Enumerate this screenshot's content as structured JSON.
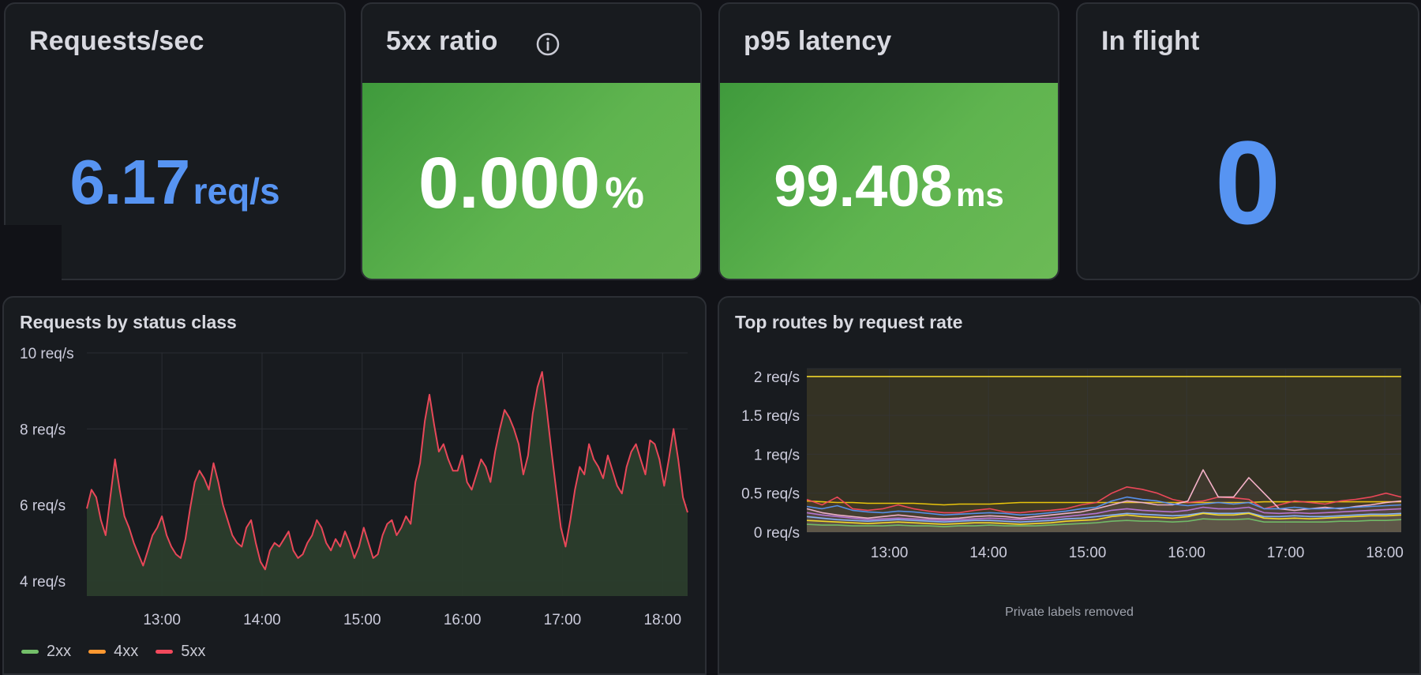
{
  "stats": [
    {
      "title": "Requests/sec",
      "value": "6.17",
      "unit": "req/s",
      "color": "#5794f2"
    },
    {
      "title": "5xx ratio",
      "value": "0.000",
      "unit": "%",
      "color": "#ffffff",
      "background": "#56a64b",
      "info_icon": "info-circle-icon"
    },
    {
      "title": "p95 latency",
      "value": "99.408",
      "unit": "ms",
      "color": "#ffffff",
      "background": "#56a64b"
    },
    {
      "title": "In flight",
      "value": "0",
      "unit": "",
      "color": "#5794f2"
    }
  ],
  "panels": {
    "status": {
      "title": "Requests by status class"
    },
    "routes": {
      "title": "Top routes by request rate",
      "footer": "Private labels removed"
    }
  },
  "chart_data": [
    {
      "type": "line",
      "title": "Requests by status class",
      "ylim": [
        3.6,
        10
      ],
      "yticks": [
        "4 req/s",
        "6 req/s",
        "8 req/s",
        "10 req/s"
      ],
      "ytick_values": [
        4,
        6,
        8,
        10
      ],
      "xticks": [
        "13:00",
        "14:00",
        "15:00",
        "16:00",
        "17:00",
        "18:00"
      ],
      "x_range": [
        "12:15",
        "18:15"
      ],
      "x_tick_minutes_from_start": [
        45,
        105,
        165,
        225,
        285,
        345
      ],
      "x_end_minutes": 360,
      "grid": true,
      "legend_placement": "bottom-left",
      "legend": [
        {
          "name": "2xx",
          "color": "#73bf69"
        },
        {
          "name": "4xx",
          "color": "#ff9830"
        },
        {
          "name": "5xx",
          "color": "#f2495c"
        }
      ],
      "series": [
        {
          "name": "5xx",
          "color": "#f2495c",
          "fill": "#2b3d2c",
          "values": [
            5.9,
            6.4,
            6.2,
            5.6,
            5.2,
            6.2,
            7.2,
            6.4,
            5.7,
            5.4,
            5.0,
            4.7,
            4.4,
            4.8,
            5.2,
            5.4,
            5.7,
            5.2,
            4.9,
            4.7,
            4.6,
            5.1,
            5.9,
            6.6,
            6.9,
            6.7,
            6.4,
            7.1,
            6.6,
            6.0,
            5.6,
            5.2,
            5.0,
            4.9,
            5.4,
            5.6,
            5.0,
            4.5,
            4.3,
            4.8,
            5.0,
            4.9,
            5.1,
            5.3,
            4.8,
            4.6,
            4.7,
            5.0,
            5.2,
            5.6,
            5.4,
            5.0,
            4.8,
            5.1,
            4.9,
            5.3,
            5.0,
            4.6,
            4.9,
            5.4,
            5.0,
            4.6,
            4.7,
            5.2,
            5.5,
            5.6,
            5.2,
            5.4,
            5.7,
            5.5,
            6.6,
            7.1,
            8.2,
            8.9,
            8.1,
            7.4,
            7.6,
            7.2,
            6.9,
            6.9,
            7.3,
            6.6,
            6.4,
            6.8,
            7.2,
            7.0,
            6.6,
            7.4,
            8.0,
            8.5,
            8.3,
            8.0,
            7.6,
            6.8,
            7.3,
            8.4,
            9.1,
            9.5,
            8.5,
            7.4,
            6.4,
            5.4,
            4.9,
            5.6,
            6.4,
            7.0,
            6.8,
            7.6,
            7.2,
            7.0,
            6.7,
            7.3,
            6.9,
            6.5,
            6.3,
            7.0,
            7.4,
            7.6,
            7.2,
            6.8,
            7.7,
            7.6,
            7.2,
            6.5,
            7.2,
            8.0,
            7.2,
            6.2,
            5.8
          ]
        }
      ]
    },
    {
      "type": "line",
      "title": "Top routes by request rate",
      "ylim": [
        0,
        2.1
      ],
      "yticks": [
        "0 req/s",
        "0.5 req/s",
        "1 req/s",
        "1.5 req/s",
        "2 req/s"
      ],
      "ytick_values": [
        0,
        0.5,
        1,
        1.5,
        2
      ],
      "xticks": [
        "13:00",
        "14:00",
        "15:00",
        "16:00",
        "17:00",
        "18:00"
      ],
      "x_range": [
        "12:10",
        "18:10"
      ],
      "x_tick_minutes_from_start": [
        50,
        110,
        170,
        230,
        290,
        350
      ],
      "x_end_minutes": 360,
      "grid": true,
      "series": [
        {
          "color": "#fade2a",
          "values": [
            2.0,
            2.0,
            2.0,
            2.0,
            2.0,
            2.0,
            2.0,
            2.0,
            2.0,
            2.0,
            2.0,
            2.0,
            2.0,
            2.0,
            2.0,
            2.0,
            2.0,
            2.0,
            2.0,
            2.0,
            2.0,
            2.0,
            2.0,
            2.0,
            2.0,
            2.0,
            2.0,
            2.0,
            2.0,
            2.0,
            2.0,
            2.0,
            2.0,
            2.0,
            2.0,
            2.0,
            2.0,
            2.0,
            2.0,
            2.0
          ]
        },
        {
          "color": "#f2cc0c",
          "values": [
            0.4,
            0.39,
            0.38,
            0.38,
            0.37,
            0.37,
            0.37,
            0.37,
            0.36,
            0.35,
            0.36,
            0.36,
            0.36,
            0.37,
            0.38,
            0.38,
            0.38,
            0.38,
            0.38,
            0.38,
            0.38,
            0.38,
            0.38,
            0.38,
            0.38,
            0.38,
            0.38,
            0.38,
            0.38,
            0.38,
            0.39,
            0.39,
            0.39,
            0.39,
            0.39,
            0.39,
            0.39,
            0.39,
            0.39,
            0.39
          ]
        },
        {
          "color": "#f2495c",
          "values": [
            0.42,
            0.35,
            0.45,
            0.3,
            0.28,
            0.3,
            0.35,
            0.3,
            0.27,
            0.25,
            0.25,
            0.28,
            0.3,
            0.26,
            0.25,
            0.27,
            0.28,
            0.3,
            0.35,
            0.38,
            0.5,
            0.58,
            0.55,
            0.5,
            0.42,
            0.38,
            0.4,
            0.45,
            0.44,
            0.42,
            0.3,
            0.35,
            0.4,
            0.38,
            0.36,
            0.4,
            0.42,
            0.45,
            0.5,
            0.45
          ]
        },
        {
          "color": "#ffb8d1",
          "values": [
            0.3,
            0.25,
            0.22,
            0.2,
            0.18,
            0.2,
            0.22,
            0.2,
            0.18,
            0.17,
            0.18,
            0.2,
            0.21,
            0.2,
            0.18,
            0.2,
            0.22,
            0.24,
            0.26,
            0.3,
            0.35,
            0.4,
            0.38,
            0.35,
            0.35,
            0.4,
            0.8,
            0.45,
            0.45,
            0.7,
            0.5,
            0.3,
            0.28,
            0.3,
            0.32,
            0.3,
            0.33,
            0.35,
            0.38,
            0.4
          ]
        },
        {
          "color": "#5794f2",
          "values": [
            0.33,
            0.3,
            0.34,
            0.28,
            0.26,
            0.25,
            0.27,
            0.26,
            0.24,
            0.22,
            0.23,
            0.24,
            0.25,
            0.24,
            0.22,
            0.23,
            0.25,
            0.27,
            0.3,
            0.32,
            0.4,
            0.45,
            0.42,
            0.4,
            0.36,
            0.34,
            0.36,
            0.38,
            0.36,
            0.38,
            0.3,
            0.3,
            0.32,
            0.3,
            0.3,
            0.31,
            0.32,
            0.33,
            0.34,
            0.35
          ]
        },
        {
          "color": "#b877d9",
          "values": [
            0.25,
            0.22,
            0.2,
            0.18,
            0.16,
            0.17,
            0.18,
            0.17,
            0.16,
            0.15,
            0.16,
            0.17,
            0.18,
            0.17,
            0.16,
            0.17,
            0.18,
            0.2,
            0.22,
            0.24,
            0.28,
            0.3,
            0.28,
            0.27,
            0.26,
            0.28,
            0.32,
            0.3,
            0.3,
            0.32,
            0.25,
            0.24,
            0.25,
            0.24,
            0.25,
            0.26,
            0.27,
            0.28,
            0.29,
            0.3
          ]
        },
        {
          "color": "#8ab8ff",
          "values": [
            0.2,
            0.18,
            0.16,
            0.15,
            0.14,
            0.15,
            0.16,
            0.15,
            0.14,
            0.13,
            0.14,
            0.15,
            0.15,
            0.14,
            0.13,
            0.14,
            0.15,
            0.17,
            0.18,
            0.2,
            0.22,
            0.24,
            0.23,
            0.22,
            0.21,
            0.22,
            0.25,
            0.24,
            0.24,
            0.25,
            0.2,
            0.2,
            0.21,
            0.2,
            0.2,
            0.21,
            0.22,
            0.23,
            0.23,
            0.24
          ]
        },
        {
          "color": "#fade2a",
          "values": [
            0.15,
            0.14,
            0.13,
            0.12,
            0.11,
            0.12,
            0.13,
            0.12,
            0.11,
            0.1,
            0.11,
            0.12,
            0.12,
            0.11,
            0.1,
            0.11,
            0.12,
            0.14,
            0.15,
            0.16,
            0.2,
            0.22,
            0.2,
            0.19,
            0.18,
            0.2,
            0.24,
            0.22,
            0.22,
            0.24,
            0.18,
            0.17,
            0.18,
            0.17,
            0.18,
            0.19,
            0.2,
            0.21,
            0.21,
            0.22
          ]
        },
        {
          "color": "#73bf69",
          "values": [
            0.1,
            0.09,
            0.09,
            0.08,
            0.08,
            0.08,
            0.09,
            0.08,
            0.08,
            0.07,
            0.08,
            0.08,
            0.09,
            0.08,
            0.08,
            0.08,
            0.09,
            0.1,
            0.11,
            0.12,
            0.14,
            0.15,
            0.14,
            0.14,
            0.13,
            0.14,
            0.17,
            0.16,
            0.16,
            0.17,
            0.13,
            0.13,
            0.13,
            0.13,
            0.13,
            0.14,
            0.14,
            0.15,
            0.15,
            0.16
          ]
        }
      ]
    }
  ]
}
